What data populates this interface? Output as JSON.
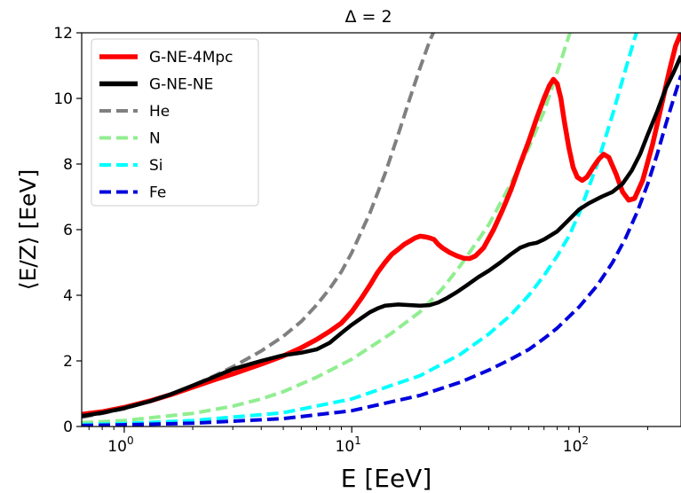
{
  "chart_data": {
    "type": "line",
    "title": "Δ = 2",
    "xlabel": "E [EeV]",
    "ylabel": "⟨E/Z⟩ [EeV]",
    "xscale": "log",
    "xlim": [
      0.65,
      280
    ],
    "ylim": [
      0,
      12
    ],
    "x_ticks": [
      {
        "value": 1,
        "base": "10",
        "exp": "0"
      },
      {
        "value": 10,
        "base": "10",
        "exp": "1"
      },
      {
        "value": 100,
        "base": "10",
        "exp": "2"
      }
    ],
    "y_ticks": [
      {
        "value": 0,
        "label": "0"
      },
      {
        "value": 2,
        "label": "2"
      },
      {
        "value": 4,
        "label": "4"
      },
      {
        "value": 6,
        "label": "6"
      },
      {
        "value": 8,
        "label": "8"
      },
      {
        "value": 10,
        "label": "10"
      },
      {
        "value": 12,
        "label": "12"
      }
    ],
    "legend_position": "upper-left",
    "grid": false,
    "series": [
      {
        "name": "G-NE-4Mpc",
        "color": "#ff0000",
        "style": "solid",
        "points": [
          [
            0.65,
            0.37
          ],
          [
            0.8,
            0.45
          ],
          [
            1.0,
            0.58
          ],
          [
            1.3,
            0.78
          ],
          [
            1.6,
            0.97
          ],
          [
            2.0,
            1.2
          ],
          [
            2.5,
            1.43
          ],
          [
            3.0,
            1.6
          ],
          [
            4.0,
            1.9
          ],
          [
            5.0,
            2.15
          ],
          [
            6.0,
            2.4
          ],
          [
            7.0,
            2.65
          ],
          [
            8.0,
            2.9
          ],
          [
            9.0,
            3.15
          ],
          [
            10.0,
            3.5
          ],
          [
            11.0,
            3.9
          ],
          [
            12.0,
            4.3
          ],
          [
            13.0,
            4.7
          ],
          [
            14.0,
            5.0
          ],
          [
            15.0,
            5.25
          ],
          [
            16.0,
            5.4
          ],
          [
            17.0,
            5.55
          ],
          [
            18.0,
            5.65
          ],
          [
            19.0,
            5.75
          ],
          [
            20.0,
            5.8
          ],
          [
            21.0,
            5.78
          ],
          [
            22.0,
            5.75
          ],
          [
            23.0,
            5.7
          ],
          [
            24.0,
            5.55
          ],
          [
            25.0,
            5.45
          ],
          [
            27.0,
            5.3
          ],
          [
            29.0,
            5.2
          ],
          [
            31.0,
            5.13
          ],
          [
            33.0,
            5.12
          ],
          [
            35.0,
            5.2
          ],
          [
            38.0,
            5.45
          ],
          [
            42.0,
            6.0
          ],
          [
            46.0,
            6.6
          ],
          [
            50.0,
            7.2
          ],
          [
            55.0,
            8.0
          ],
          [
            60.0,
            8.7
          ],
          [
            65.0,
            9.4
          ],
          [
            70.0,
            10.0
          ],
          [
            74.0,
            10.4
          ],
          [
            77.0,
            10.58
          ],
          [
            80.0,
            10.45
          ],
          [
            83.0,
            10.0
          ],
          [
            86.0,
            9.3
          ],
          [
            90.0,
            8.5
          ],
          [
            94.0,
            7.9
          ],
          [
            98.0,
            7.6
          ],
          [
            103.0,
            7.5
          ],
          [
            108.0,
            7.6
          ],
          [
            115.0,
            7.9
          ],
          [
            122.0,
            8.15
          ],
          [
            128.0,
            8.3
          ],
          [
            135.0,
            8.2
          ],
          [
            145.0,
            7.7
          ],
          [
            155.0,
            7.15
          ],
          [
            165.0,
            6.9
          ],
          [
            175.0,
            6.95
          ],
          [
            190.0,
            7.5
          ],
          [
            210.0,
            8.6
          ],
          [
            230.0,
            9.8
          ],
          [
            250.0,
            10.9
          ],
          [
            265.0,
            11.6
          ],
          [
            280.0,
            12.0
          ]
        ]
      },
      {
        "name": "G-NE-NE",
        "color": "#000000",
        "style": "solid",
        "points": [
          [
            0.65,
            0.32
          ],
          [
            0.8,
            0.42
          ],
          [
            1.0,
            0.56
          ],
          [
            1.3,
            0.77
          ],
          [
            1.6,
            0.98
          ],
          [
            2.0,
            1.25
          ],
          [
            2.5,
            1.52
          ],
          [
            3.0,
            1.75
          ],
          [
            4.0,
            2.0
          ],
          [
            5.0,
            2.17
          ],
          [
            6.0,
            2.25
          ],
          [
            7.0,
            2.35
          ],
          [
            8.0,
            2.55
          ],
          [
            9.0,
            2.85
          ],
          [
            10.0,
            3.1
          ],
          [
            11.0,
            3.3
          ],
          [
            12.0,
            3.48
          ],
          [
            13.0,
            3.6
          ],
          [
            14.0,
            3.68
          ],
          [
            16.0,
            3.72
          ],
          [
            18.0,
            3.7
          ],
          [
            20.0,
            3.68
          ],
          [
            22.0,
            3.7
          ],
          [
            24.0,
            3.78
          ],
          [
            26.0,
            3.9
          ],
          [
            29.0,
            4.1
          ],
          [
            32.0,
            4.3
          ],
          [
            36.0,
            4.55
          ],
          [
            40.0,
            4.75
          ],
          [
            45.0,
            5.0
          ],
          [
            50.0,
            5.25
          ],
          [
            55.0,
            5.45
          ],
          [
            60.0,
            5.55
          ],
          [
            65.0,
            5.6
          ],
          [
            70.0,
            5.7
          ],
          [
            80.0,
            5.95
          ],
          [
            90.0,
            6.3
          ],
          [
            100.0,
            6.62
          ],
          [
            110.0,
            6.8
          ],
          [
            125.0,
            7.0
          ],
          [
            140.0,
            7.15
          ],
          [
            155.0,
            7.4
          ],
          [
            170.0,
            7.8
          ],
          [
            185.0,
            8.3
          ],
          [
            200.0,
            8.9
          ],
          [
            220.0,
            9.6
          ],
          [
            240.0,
            10.3
          ],
          [
            260.0,
            10.8
          ],
          [
            280.0,
            11.3
          ]
        ]
      },
      {
        "name": "He",
        "color": "#808080",
        "style": "dashed",
        "points": [
          [
            0.65,
            0.28
          ],
          [
            0.8,
            0.4
          ],
          [
            1.0,
            0.54
          ],
          [
            1.3,
            0.77
          ],
          [
            1.6,
            0.98
          ],
          [
            2.0,
            1.25
          ],
          [
            2.5,
            1.55
          ],
          [
            3.0,
            1.82
          ],
          [
            4.0,
            2.3
          ],
          [
            5.0,
            2.75
          ],
          [
            6.0,
            3.2
          ],
          [
            7.0,
            3.7
          ],
          [
            8.0,
            4.2
          ],
          [
            9.0,
            4.72
          ],
          [
            10.0,
            5.3
          ],
          [
            12.0,
            6.5
          ],
          [
            14.0,
            7.7
          ],
          [
            16.0,
            8.9
          ],
          [
            18.0,
            10.0
          ],
          [
            20.0,
            10.95
          ],
          [
            22.0,
            11.75
          ],
          [
            23.5,
            12.2
          ]
        ]
      },
      {
        "name": "N",
        "color": "#90ee90",
        "style": "dashed",
        "points": [
          [
            0.65,
            0.12
          ],
          [
            1.0,
            0.18
          ],
          [
            2.0,
            0.4
          ],
          [
            3.0,
            0.62
          ],
          [
            4.0,
            0.84
          ],
          [
            5.0,
            1.06
          ],
          [
            7.0,
            1.5
          ],
          [
            10.0,
            2.05
          ],
          [
            15.0,
            2.85
          ],
          [
            20.0,
            3.5
          ],
          [
            25.0,
            4.2
          ],
          [
            30.0,
            4.9
          ],
          [
            40.0,
            6.15
          ],
          [
            50.0,
            7.4
          ],
          [
            60.0,
            8.5
          ],
          [
            70.0,
            9.6
          ],
          [
            80.0,
            10.8
          ],
          [
            90.0,
            11.9
          ],
          [
            93.0,
            12.2
          ]
        ]
      },
      {
        "name": "Si",
        "color": "#00ffff",
        "style": "dashed",
        "points": [
          [
            0.65,
            0.06
          ],
          [
            1.0,
            0.09
          ],
          [
            2.0,
            0.18
          ],
          [
            5.0,
            0.42
          ],
          [
            10.0,
            0.84
          ],
          [
            20.0,
            1.55
          ],
          [
            30.0,
            2.2
          ],
          [
            40.0,
            2.82
          ],
          [
            50.0,
            3.4
          ],
          [
            60.0,
            4.0
          ],
          [
            70.0,
            4.6
          ],
          [
            80.0,
            5.2
          ],
          [
            90.0,
            5.8
          ],
          [
            100.0,
            6.5
          ],
          [
            120.0,
            8.0
          ],
          [
            140.0,
            9.5
          ],
          [
            160.0,
            10.9
          ],
          [
            180.0,
            12.1
          ],
          [
            185.0,
            12.2
          ]
        ]
      },
      {
        "name": "Fe",
        "color": "#0000dd",
        "style": "dashed",
        "points": [
          [
            0.65,
            0.03
          ],
          [
            1.0,
            0.05
          ],
          [
            2.0,
            0.1
          ],
          [
            5.0,
            0.24
          ],
          [
            10.0,
            0.48
          ],
          [
            20.0,
            0.95
          ],
          [
            30.0,
            1.35
          ],
          [
            40.0,
            1.72
          ],
          [
            50.0,
            2.05
          ],
          [
            60.0,
            2.35
          ],
          [
            70.0,
            2.68
          ],
          [
            80.0,
            3.0
          ],
          [
            100.0,
            3.65
          ],
          [
            120.0,
            4.3
          ],
          [
            140.0,
            5.0
          ],
          [
            160.0,
            5.75
          ],
          [
            180.0,
            6.55
          ],
          [
            200.0,
            7.4
          ],
          [
            220.0,
            8.3
          ],
          [
            240.0,
            9.2
          ],
          [
            260.0,
            10.0
          ],
          [
            280.0,
            10.7
          ]
        ]
      }
    ]
  }
}
